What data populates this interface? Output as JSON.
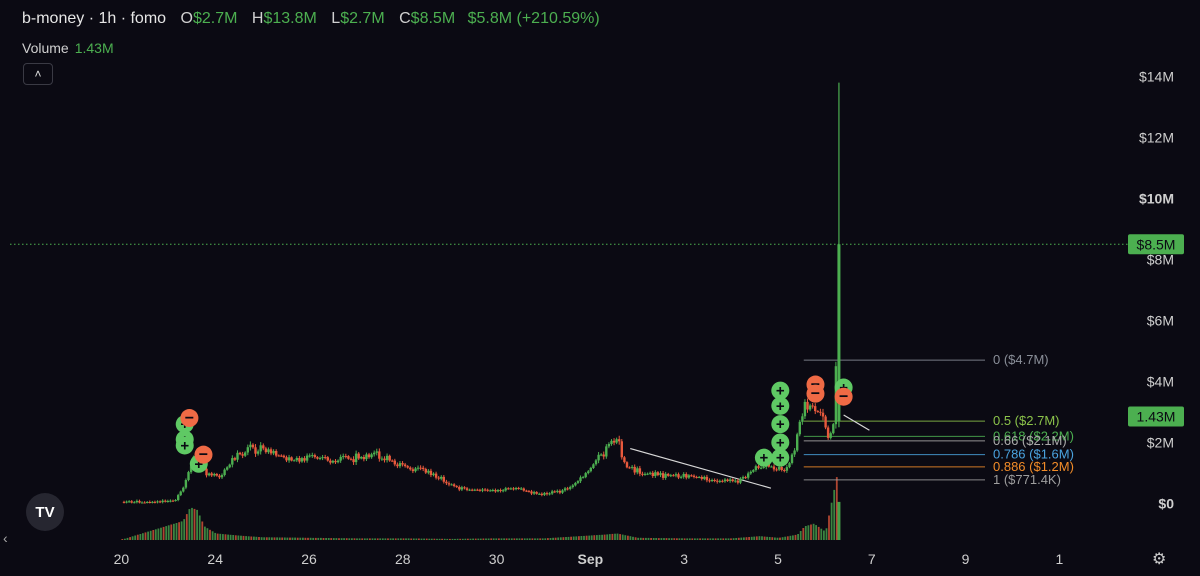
{
  "header": {
    "title": "b-money · 1h · fomo",
    "open_label": "O",
    "open": "$2.7M",
    "high_label": "H",
    "high": "$13.8M",
    "low_label": "L",
    "low": "$2.7M",
    "close_label": "C",
    "close": "$8.5M",
    "change": "$5.8M (+210.59%)"
  },
  "volume": {
    "label": "Volume",
    "value": "1.43M"
  },
  "icons": {
    "collapse": "chevron-up-icon",
    "logo": "tradingview-logo",
    "settings": "gear-icon",
    "scroll": "chevron-left-icon"
  },
  "colors": {
    "up": "#4caf50",
    "down": "#e8593c",
    "background": "#0b0a13",
    "buy_marker": "#5fc964",
    "sell_marker": "#ef6a45"
  },
  "chart_data": {
    "type": "candlestick",
    "y_axis": {
      "ticks": [
        "$14M",
        "$12M",
        "$10M",
        "$8M",
        "$6M",
        "$4M",
        "$2M",
        "$0"
      ],
      "tick_values": [
        14,
        12,
        10,
        8,
        6,
        4,
        2,
        0
      ],
      "unit": "$M",
      "range": [
        -1.2,
        15.2
      ]
    },
    "x_axis": {
      "ticks": [
        "20",
        "24",
        "26",
        "28",
        "30",
        "Sep",
        "3",
        "5",
        "7",
        "9",
        "1"
      ],
      "tick_values": [
        0,
        2,
        4,
        6,
        8,
        10,
        12,
        14,
        16,
        18,
        20
      ],
      "range": [
        -0.35,
        21.4
      ]
    },
    "price_label": "$8.5M",
    "price_line": 8.5,
    "volume_label": "1.43M",
    "price_series": [
      [
        0,
        0.05
      ],
      [
        1.0,
        0.05
      ],
      [
        1.15,
        0.1
      ],
      [
        1.35,
        0.6
      ],
      [
        1.55,
        1.6
      ],
      [
        1.8,
        1.0
      ],
      [
        2.1,
        0.9
      ],
      [
        2.5,
        1.6
      ],
      [
        2.8,
        1.8
      ],
      [
        3.2,
        1.7
      ],
      [
        3.6,
        1.4
      ],
      [
        4.0,
        1.5
      ],
      [
        4.5,
        1.4
      ],
      [
        5.0,
        1.5
      ],
      [
        5.5,
        1.6
      ],
      [
        6.0,
        1.2
      ],
      [
        6.6,
        1.0
      ],
      [
        7.2,
        0.5
      ],
      [
        7.8,
        0.4
      ],
      [
        8.4,
        0.5
      ],
      [
        8.9,
        0.3
      ],
      [
        9.4,
        0.4
      ],
      [
        9.8,
        0.8
      ],
      [
        10.3,
        1.7
      ],
      [
        10.55,
        2.2
      ],
      [
        10.75,
        1.2
      ],
      [
        11.2,
        1.0
      ],
      [
        11.6,
        0.9
      ],
      [
        12.2,
        0.9
      ],
      [
        12.6,
        0.8
      ],
      [
        13.1,
        0.7
      ],
      [
        13.35,
        0.9
      ],
      [
        13.55,
        1.2
      ],
      [
        13.9,
        1.2
      ],
      [
        14.2,
        1.1
      ],
      [
        14.35,
        1.8
      ],
      [
        14.55,
        3.2
      ],
      [
        14.75,
        3.3
      ],
      [
        14.95,
        2.7
      ],
      [
        15.1,
        2.1
      ],
      [
        15.2,
        2.7
      ],
      [
        15.3,
        8.5
      ]
    ],
    "volume_series": [
      [
        0,
        0.01
      ],
      [
        1.3,
        0.35
      ],
      [
        1.45,
        0.6
      ],
      [
        1.6,
        0.55
      ],
      [
        1.75,
        0.25
      ],
      [
        2.0,
        0.12
      ],
      [
        2.5,
        0.08
      ],
      [
        3.0,
        0.05
      ],
      [
        4.0,
        0.04
      ],
      [
        5.0,
        0.03
      ],
      [
        6.0,
        0.03
      ],
      [
        7.0,
        0.02
      ],
      [
        8.0,
        0.03
      ],
      [
        9.0,
        0.03
      ],
      [
        10.3,
        0.1
      ],
      [
        10.55,
        0.12
      ],
      [
        11.0,
        0.04
      ],
      [
        12.0,
        0.03
      ],
      [
        13.0,
        0.03
      ],
      [
        13.6,
        0.07
      ],
      [
        14.0,
        0.04
      ],
      [
        14.4,
        0.1
      ],
      [
        14.55,
        0.25
      ],
      [
        14.75,
        0.3
      ],
      [
        15.0,
        0.15
      ],
      [
        15.3,
        1.43
      ]
    ],
    "high_wick": [
      15.3,
      13.8
    ],
    "fib_levels": [
      {
        "ratio": 0,
        "label": "0 ($4.7M)",
        "value": 4.7,
        "color": "#8a8f99"
      },
      {
        "ratio": 0.5,
        "label": "0.5 ($2.7M)",
        "value": 2.7,
        "color": "#8bc34a"
      },
      {
        "ratio": 0.618,
        "label": "0.618 ($2.2M)",
        "value": 2.2,
        "color": "#4caf50"
      },
      {
        "ratio": 0.66,
        "label": "0.66 ($2.1M)",
        "value": 2.05,
        "color": "#aaaaaa"
      },
      {
        "ratio": 0.786,
        "label": "0.786 ($1.6M)",
        "value": 1.6,
        "color": "#4aa3df"
      },
      {
        "ratio": 0.886,
        "label": "0.886 ($1.2M)",
        "value": 1.2,
        "color": "#f28c28"
      },
      {
        "ratio": 1,
        "label": "1 ($771.4K)",
        "value": 0.7714,
        "color": "#9e9e9e"
      }
    ],
    "trendlines": [
      {
        "from": [
          10.85,
          1.8
        ],
        "to": [
          13.85,
          0.5
        ]
      },
      {
        "from": [
          15.4,
          2.9
        ],
        "to": [
          15.95,
          2.4
        ]
      }
    ],
    "buy_markers": [
      [
        1.35,
        2.6
      ],
      [
        1.35,
        2.1
      ],
      [
        1.35,
        1.9
      ],
      [
        1.65,
        1.3
      ],
      [
        13.7,
        1.5
      ],
      [
        14.05,
        3.7
      ],
      [
        14.05,
        3.2
      ],
      [
        14.05,
        2.6
      ],
      [
        14.05,
        2.0
      ],
      [
        14.05,
        1.5
      ],
      [
        15.4,
        3.8
      ]
    ],
    "sell_markers": [
      [
        1.45,
        2.8
      ],
      [
        1.75,
        1.6
      ],
      [
        14.8,
        3.9
      ],
      [
        14.8,
        3.6
      ],
      [
        15.4,
        3.5
      ]
    ]
  }
}
